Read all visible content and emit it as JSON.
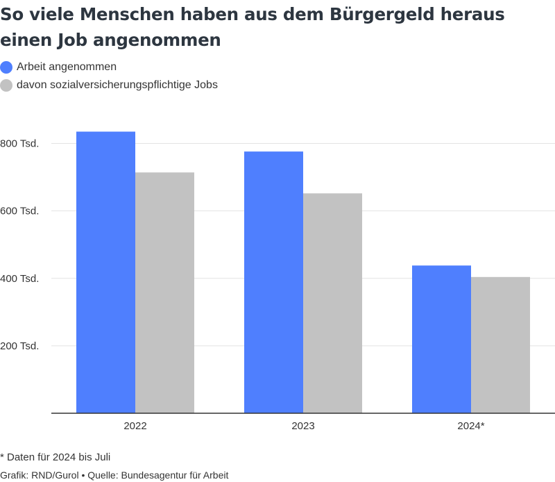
{
  "title": "So viele Menschen haben aus dem Bürgergeld heraus einen Job angenommen",
  "footnote": "* Daten für 2024 bis Juli",
  "credit": "Grafik: RND/Gurol • Quelle: Bundesagentur für Arbeit",
  "chart_data": {
    "type": "bar",
    "title": "So viele Menschen haben aus dem Bürgergeld heraus einen Job angenommen",
    "categories": [
      "2022",
      "2023",
      "2024*"
    ],
    "series": [
      {
        "name": "Arbeit angenommen",
        "color": "#4f7ffe",
        "values": [
          835,
          776,
          438
        ]
      },
      {
        "name": "davon sozialversicherungspflichtige Jobs",
        "color": "#c2c2c2",
        "values": [
          714,
          652,
          404
        ]
      }
    ],
    "yticks": [
      200,
      400,
      600,
      800
    ],
    "ytick_labels": [
      "200 Tsd.",
      "400 Tsd.",
      "600 Tsd.",
      "800 Tsd."
    ],
    "ylim": [
      0,
      900
    ],
    "unit": "Tsd.",
    "grid": true,
    "legend_position": "top-left",
    "xlabel": "",
    "ylabel": ""
  }
}
